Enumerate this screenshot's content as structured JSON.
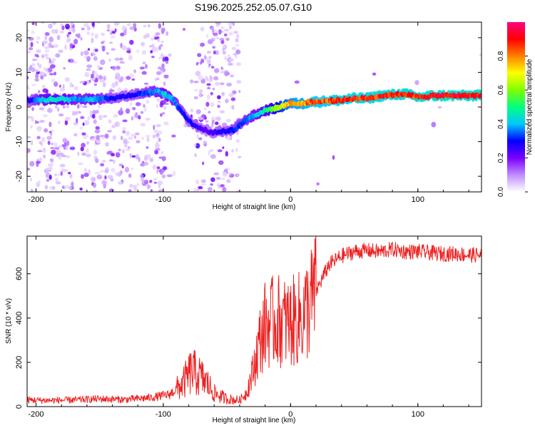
{
  "title": "S196.2025.252.05.07.G10",
  "chart_data": [
    {
      "type": "heatmap",
      "name": "spectrogram",
      "xlabel": "Height of straight line (km)",
      "ylabel": "Frequency (Hz)",
      "xlim": [
        -207,
        150
      ],
      "ylim": [
        -24.5,
        24.5
      ],
      "xticks": [
        -200,
        -100,
        0,
        100
      ],
      "yticks": [
        -20,
        -10,
        0,
        10,
        20
      ],
      "colorbar": {
        "label": "Normalized spectral amplitude",
        "range": [
          0,
          1
        ],
        "ticks": [
          "0.0",
          "0.2",
          "0.4",
          "0.6",
          "0.8"
        ],
        "colors": [
          "#ffffff",
          "#c08cff",
          "#7a00ff",
          "#0000ff",
          "#00c8ff",
          "#00ff80",
          "#80ff00",
          "#ffff00",
          "#ff8000",
          "#ff0000",
          "#ff0080"
        ]
      },
      "ridge": [
        {
          "x": -205,
          "y": 2.0,
          "a": 0.3
        },
        {
          "x": -195,
          "y": 2.0,
          "a": 0.45
        },
        {
          "x": -185,
          "y": 2.3,
          "a": 0.5
        },
        {
          "x": -175,
          "y": 2.2,
          "a": 0.45
        },
        {
          "x": -165,
          "y": 2.4,
          "a": 0.4
        },
        {
          "x": -155,
          "y": 2.3,
          "a": 0.45
        },
        {
          "x": -145,
          "y": 2.5,
          "a": 0.35
        },
        {
          "x": -135,
          "y": 2.8,
          "a": 0.3
        },
        {
          "x": -125,
          "y": 3.5,
          "a": 0.3
        },
        {
          "x": -115,
          "y": 4.0,
          "a": 0.35
        },
        {
          "x": -105,
          "y": 4.5,
          "a": 0.4
        },
        {
          "x": -98,
          "y": 3.5,
          "a": 0.45
        },
        {
          "x": -92,
          "y": 2.0,
          "a": 0.4
        },
        {
          "x": -86,
          "y": -1.0,
          "a": 0.35
        },
        {
          "x": -80,
          "y": -4.0,
          "a": 0.3
        },
        {
          "x": -74,
          "y": -5.5,
          "a": 0.3
        },
        {
          "x": -68,
          "y": -6.5,
          "a": 0.25
        },
        {
          "x": -62,
          "y": -7.5,
          "a": 0.25
        },
        {
          "x": -56,
          "y": -7.0,
          "a": 0.3
        },
        {
          "x": -50,
          "y": -7.0,
          "a": 0.3
        },
        {
          "x": -44,
          "y": -6.5,
          "a": 0.35
        },
        {
          "x": -38,
          "y": -4.5,
          "a": 0.35
        },
        {
          "x": -32,
          "y": -3.0,
          "a": 0.4
        },
        {
          "x": -26,
          "y": -2.0,
          "a": 0.45
        },
        {
          "x": -20,
          "y": -1.0,
          "a": 0.5
        },
        {
          "x": -14,
          "y": -0.5,
          "a": 0.6
        },
        {
          "x": -8,
          "y": 0.0,
          "a": 0.7
        },
        {
          "x": -2,
          "y": 1.0,
          "a": 0.8
        },
        {
          "x": 4,
          "y": 1.0,
          "a": 0.85
        },
        {
          "x": 10,
          "y": 1.0,
          "a": 0.85
        },
        {
          "x": 16,
          "y": 1.5,
          "a": 0.9
        },
        {
          "x": 22,
          "y": 1.5,
          "a": 0.9
        },
        {
          "x": 30,
          "y": 1.8,
          "a": 0.9
        },
        {
          "x": 40,
          "y": 2.0,
          "a": 0.92
        },
        {
          "x": 50,
          "y": 2.5,
          "a": 0.94
        },
        {
          "x": 60,
          "y": 2.5,
          "a": 0.94
        },
        {
          "x": 70,
          "y": 3.2,
          "a": 0.95
        },
        {
          "x": 80,
          "y": 3.5,
          "a": 0.95
        },
        {
          "x": 90,
          "y": 3.8,
          "a": 0.96
        },
        {
          "x": 100,
          "y": 2.8,
          "a": 0.95
        },
        {
          "x": 110,
          "y": 3.2,
          "a": 0.97
        },
        {
          "x": 120,
          "y": 3.3,
          "a": 0.98
        },
        {
          "x": 130,
          "y": 3.3,
          "a": 0.98
        },
        {
          "x": 140,
          "y": 3.3,
          "a": 0.98
        },
        {
          "x": 150,
          "y": 3.3,
          "a": 0.98
        }
      ]
    },
    {
      "type": "line",
      "name": "snr",
      "xlabel": "Height of straight line (km)",
      "ylabel": "SNR (10 * v/v)",
      "xlim": [
        -207,
        150
      ],
      "ylim": [
        0,
        770
      ],
      "xticks": [
        -200,
        -100,
        0,
        100
      ],
      "yticks": [
        0,
        200,
        400,
        600
      ],
      "color": "#ee2020",
      "series": [
        {
          "name": "SNR",
          "x": [
            -207,
            -190,
            -170,
            -150,
            -130,
            -110,
            -95,
            -85,
            -78,
            -72,
            -66,
            -60,
            -50,
            -40,
            -35,
            -30,
            -25,
            -20,
            -15,
            -10,
            -5,
            0,
            5,
            10,
            15,
            20,
            25,
            30,
            40,
            50,
            60,
            70,
            80,
            90,
            100,
            110,
            120,
            130,
            140,
            150
          ],
          "y": [
            30,
            28,
            30,
            35,
            32,
            40,
            55,
            100,
            160,
            140,
            110,
            60,
            35,
            28,
            60,
            150,
            280,
            370,
            380,
            390,
            380,
            380,
            390,
            410,
            460,
            520,
            580,
            640,
            680,
            700,
            705,
            700,
            710,
            700,
            700,
            695,
            690,
            690,
            685,
            685
          ]
        }
      ]
    }
  ]
}
